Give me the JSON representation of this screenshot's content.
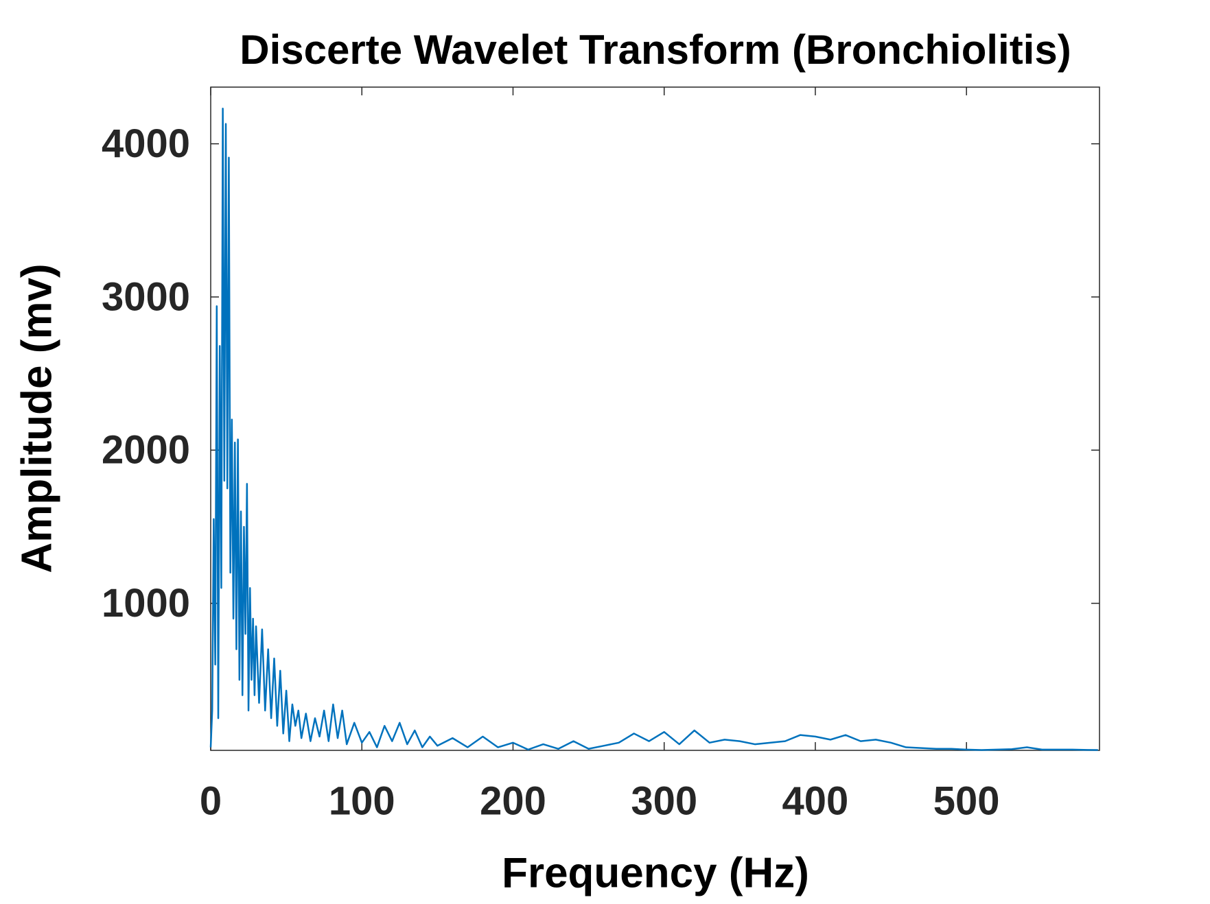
{
  "chart_data": {
    "type": "line",
    "title": "Discerte Wavelet Transform  (Bronchiolitis)",
    "x_label": "Frequency (Hz)",
    "y_label": "Amplitude (mv)",
    "x": [
      0,
      1,
      2,
      3,
      4,
      5,
      6,
      7,
      8,
      9,
      10,
      11,
      12,
      13,
      14,
      15,
      16,
      17,
      18,
      19,
      20,
      21,
      22,
      23,
      24,
      25,
      26,
      27,
      28,
      29,
      30,
      32,
      34,
      36,
      38,
      40,
      42,
      44,
      46,
      48,
      50,
      52,
      54,
      56,
      58,
      60,
      63,
      66,
      69,
      72,
      75,
      78,
      81,
      84,
      87,
      90,
      95,
      100,
      105,
      110,
      115,
      120,
      125,
      130,
      135,
      140,
      145,
      150,
      160,
      170,
      180,
      190,
      200,
      210,
      220,
      230,
      240,
      250,
      260,
      270,
      280,
      290,
      300,
      310,
      320,
      330,
      340,
      350,
      360,
      370,
      380,
      390,
      400,
      410,
      420,
      430,
      440,
      450,
      460,
      470,
      480,
      490,
      500,
      510,
      520,
      530,
      540,
      550,
      560,
      570,
      580,
      587
    ],
    "series": [
      {
        "name": "Amplitude",
        "color": "#0072BD",
        "values": [
          60,
          300,
          1550,
          600,
          2940,
          250,
          2680,
          1100,
          4230,
          1800,
          4130,
          1750,
          3910,
          1200,
          2200,
          900,
          2050,
          700,
          2070,
          500,
          1600,
          400,
          1500,
          800,
          1780,
          300,
          1100,
          500,
          900,
          400,
          850,
          350,
          830,
          300,
          700,
          250,
          640,
          200,
          560,
          150,
          430,
          100,
          340,
          200,
          300,
          120,
          280,
          100,
          250,
          130,
          300,
          100,
          340,
          120,
          300,
          80,
          220,
          90,
          160,
          60,
          200,
          100,
          220,
          80,
          170,
          60,
          130,
          70,
          120,
          60,
          130,
          60,
          90,
          45,
          80,
          50,
          100,
          50,
          70,
          90,
          150,
          100,
          160,
          80,
          170,
          90,
          110,
          100,
          80,
          90,
          100,
          140,
          130,
          110,
          140,
          100,
          110,
          90,
          60,
          55,
          50,
          50,
          45,
          42,
          45,
          48,
          60,
          45,
          45,
          45,
          43,
          42
        ]
      }
    ],
    "xlim": [
      0,
      588
    ],
    "ylim": [
      40,
      4370
    ],
    "xticks": [
      0,
      100,
      200,
      300,
      400,
      500
    ],
    "yticks": [
      1000,
      2000,
      3000,
      4000
    ],
    "grid": false
  }
}
